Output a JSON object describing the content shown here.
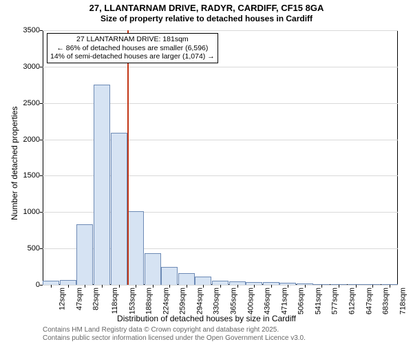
{
  "title_line1": "27, LLANTARNAM DRIVE, RADYR, CARDIFF, CF15 8GA",
  "title_line2": "Size of property relative to detached houses in Cardiff",
  "y_axis_label": "Number of detached properties",
  "x_axis_label": "Distribution of detached houses by size in Cardiff",
  "chart": {
    "type": "histogram",
    "background_color": "#ffffff",
    "grid_color": "#d9d9d9",
    "axis_color": "#000000",
    "bar_fill": "#d6e3f3",
    "bar_stroke": "#6d8ab5",
    "bar_stroke_width": 1,
    "marker_color": "#c23616",
    "ylim": [
      0,
      3500
    ],
    "ytick_step": 500,
    "yticks": [
      0,
      500,
      1000,
      1500,
      2000,
      2500,
      3000,
      3500
    ],
    "x_categories": [
      "12sqm",
      "47sqm",
      "82sqm",
      "118sqm",
      "153sqm",
      "188sqm",
      "224sqm",
      "259sqm",
      "294sqm",
      "330sqm",
      "365sqm",
      "400sqm",
      "436sqm",
      "471sqm",
      "506sqm",
      "541sqm",
      "577sqm",
      "612sqm",
      "647sqm",
      "683sqm",
      "718sqm"
    ],
    "values": [
      60,
      70,
      830,
      2750,
      2090,
      1010,
      440,
      250,
      160,
      110,
      60,
      45,
      40,
      35,
      25,
      15,
      10,
      8,
      5,
      4,
      3
    ],
    "marker_category_index": 5,
    "label_fontsize": 12,
    "tick_fontsize": 11
  },
  "annotation": {
    "line1": "27 LLANTARNAM DRIVE: 181sqm",
    "line2": "← 86% of detached houses are smaller (6,596)",
    "line3": "14% of semi-detached houses are larger (1,074) →",
    "border_color": "#000000",
    "bg_color": "#ffffff"
  },
  "footer_line1": "Contains HM Land Registry data © Crown copyright and database right 2025.",
  "footer_line2": "Contains public sector information licensed under the Open Government Licence v3.0."
}
